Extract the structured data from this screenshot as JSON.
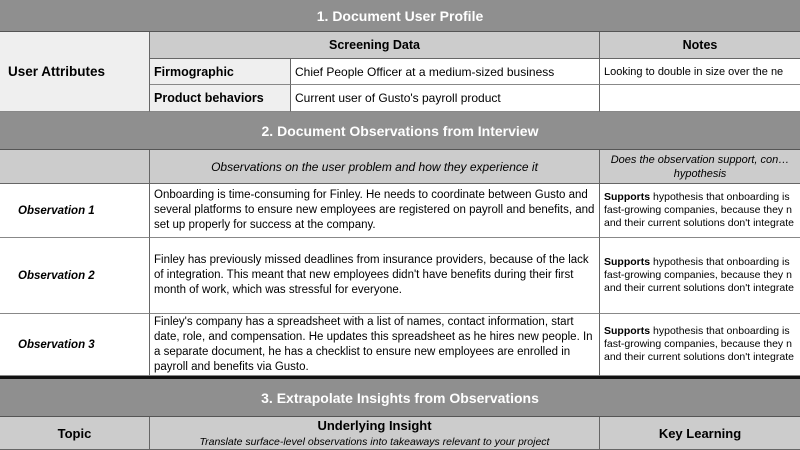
{
  "section1": {
    "title": "1. Document User Profile",
    "row_label": "User Attributes",
    "col_screening": "Screening Data",
    "col_notes": "Notes",
    "rows": [
      {
        "label": "Firmographic",
        "value": "Chief People Officer at a medium-sized business",
        "note": "Looking to double in size over the ne"
      },
      {
        "label": "Product behaviors",
        "value": "Current user of Gusto's payroll product",
        "note": ""
      }
    ]
  },
  "section2": {
    "title": "2. Document Observations from Interview",
    "col_obs": "Observations on the user problem and how they experience it",
    "col_hyp": "Does the observation support, con… hypothesis",
    "rows": [
      {
        "label": "Observation 1",
        "text": "Onboarding is time-consuming for Finley. He needs to coordinate between Gusto and several platforms to ensure new employees are registered on payroll and benefits, and set up properly for success at the company.",
        "hyp_bold": "Supports",
        "hyp": " hypothesis that onboarding is fast-growing companies, because they n and their current solutions don't integrate"
      },
      {
        "label": "Observation 2",
        "text": "Finley has previously missed deadlines from insurance providers, because of the lack of integration. This meant that new employees didn't have benefits during their first month of work, which was stressful for everyone.",
        "hyp_bold": "Supports",
        "hyp": " hypothesis that onboarding is fast-growing companies, because they n and their current solutions don't integrate"
      },
      {
        "label": "Observation 3",
        "text": "Finley's company has a spreadsheet with a list of names, contact information, start date, role, and compensation. He updates this spreadsheet as he hires new people. In a separate document, he has a checklist to ensure new employees are enrolled in payroll and benefits via Gusto.",
        "hyp_bold": "Supports",
        "hyp": " hypothesis that onboarding is fast-growing companies, because they n and their current solutions don't integrate"
      }
    ]
  },
  "section3": {
    "title": "3. Extrapolate Insights from Observations",
    "col_topic": "Topic",
    "col_insight": "Underlying Insight",
    "col_insight_sub": "Translate surface-level observations into takeaways relevant to your project",
    "col_learning": "Key Learning"
  }
}
